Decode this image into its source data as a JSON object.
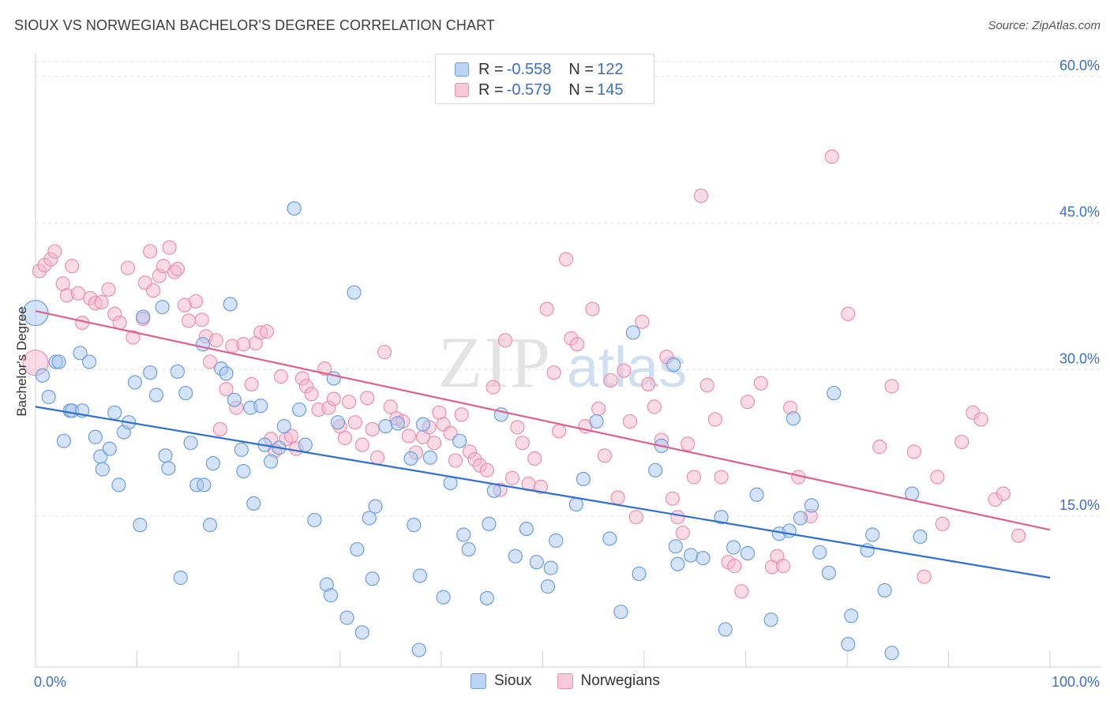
{
  "header": {
    "title": "SIOUX VS NORWEGIAN BACHELOR'S DEGREE CORRELATION CHART",
    "source": "Source: ZipAtlas.com"
  },
  "legend": {
    "rows": [
      {
        "r_label": "R = ",
        "r_value": "-0.558",
        "n_label": "N = ",
        "n_value": "122"
      },
      {
        "r_label": "R = ",
        "r_value": "-0.579",
        "n_label": "N = ",
        "n_value": "145"
      }
    ],
    "bottom": [
      "Sioux",
      "Norwegians"
    ]
  },
  "watermark": {
    "zip": "ZIP",
    "atlas": "atlas"
  },
  "colors": {
    "sioux_fill": "#a9c8ef",
    "sioux_stroke": "#6b9fe0",
    "sioux_line": "#2d6fd3",
    "norw_fill": "#f5b8cb",
    "norw_stroke": "#ec8fac",
    "norw_line": "#e0608c",
    "tick_text": "#3b6fc4",
    "grid": "#e0e0e0"
  },
  "chart_data": {
    "type": "scatter",
    "title": "SIOUX VS NORWEGIAN BACHELOR'S DEGREE CORRELATION CHART",
    "xlabel": "",
    "ylabel": "Bachelor's Degree",
    "xlim": [
      0,
      100
    ],
    "ylim": [
      0,
      62.5
    ],
    "x_tick_labels": [
      "0.0%",
      "100.0%"
    ],
    "y_ticks": [
      15,
      30,
      45,
      60
    ],
    "y_tick_labels": [
      "15.0%",
      "30.0%",
      "45.0%",
      "60.0%"
    ],
    "grid": true,
    "legend_position": "top-center",
    "series": [
      {
        "name": "Sioux",
        "r": -0.558,
        "n": 122,
        "trend": {
          "x": [
            0,
            100
          ],
          "y": [
            26.2,
            8.7
          ]
        },
        "points": [
          [
            0,
            35.8
          ],
          [
            0.7,
            29.4
          ],
          [
            1.3,
            27.2
          ],
          [
            2,
            30.8
          ],
          [
            2.3,
            30.8
          ],
          [
            2.8,
            22.7
          ],
          [
            3.4,
            25.8
          ],
          [
            3.6,
            25.8
          ],
          [
            4.4,
            31.7
          ],
          [
            4.6,
            25.8
          ],
          [
            5.3,
            30.8
          ],
          [
            5.9,
            23.1
          ],
          [
            6.4,
            21.1
          ],
          [
            6.6,
            19.8
          ],
          [
            7.3,
            21.9
          ],
          [
            7.8,
            25.6
          ],
          [
            8.2,
            18.2
          ],
          [
            8.7,
            23.6
          ],
          [
            9.2,
            24.6
          ],
          [
            9.8,
            28.7
          ],
          [
            10.3,
            14.1
          ],
          [
            10.6,
            35.4
          ],
          [
            11.3,
            29.7
          ],
          [
            11.9,
            27.4
          ],
          [
            12.5,
            36.4
          ],
          [
            12.8,
            21.2
          ],
          [
            13.1,
            19.9
          ],
          [
            14,
            29.8
          ],
          [
            14.3,
            8.7
          ],
          [
            14.8,
            27.6
          ],
          [
            15.3,
            22.5
          ],
          [
            15.9,
            18.2
          ],
          [
            16.5,
            32.6
          ],
          [
            16.6,
            18.2
          ],
          [
            17.2,
            14.1
          ],
          [
            17.5,
            20.4
          ],
          [
            18.3,
            30.1
          ],
          [
            18.8,
            29.6
          ],
          [
            19.2,
            36.7
          ],
          [
            19.6,
            26.9
          ],
          [
            20.3,
            21.8
          ],
          [
            20.5,
            19.6
          ],
          [
            21.2,
            26.1
          ],
          [
            21.5,
            16.3
          ],
          [
            22.2,
            26.3
          ],
          [
            22.6,
            22.3
          ],
          [
            23.2,
            20.6
          ],
          [
            24,
            22
          ],
          [
            24.5,
            24.2
          ],
          [
            25.5,
            46.5
          ],
          [
            26,
            25.9
          ],
          [
            26.6,
            22.3
          ],
          [
            27.5,
            14.6
          ],
          [
            28.7,
            8
          ],
          [
            29.1,
            6.9
          ],
          [
            29.4,
            29.1
          ],
          [
            29.8,
            24.6
          ],
          [
            30.7,
            4.6
          ],
          [
            31.4,
            37.9
          ],
          [
            31.7,
            11.6
          ],
          [
            32.2,
            3.1
          ],
          [
            32.9,
            14.8
          ],
          [
            33.2,
            8.6
          ],
          [
            33.5,
            16
          ],
          [
            34.5,
            24.2
          ],
          [
            35.7,
            24.5
          ],
          [
            37,
            20.9
          ],
          [
            37.8,
            1.3
          ],
          [
            37.3,
            14.1
          ],
          [
            37.9,
            8.9
          ],
          [
            38.2,
            24.4
          ],
          [
            38.9,
            21
          ],
          [
            40.2,
            6.7
          ],
          [
            40.9,
            18.4
          ],
          [
            41.8,
            22.7
          ],
          [
            42.2,
            13.1
          ],
          [
            42.7,
            11.6
          ],
          [
            44.5,
            6.6
          ],
          [
            44.7,
            14.2
          ],
          [
            45.2,
            17.6
          ],
          [
            45.9,
            25.4
          ],
          [
            47.3,
            10.9
          ],
          [
            48.4,
            13.7
          ],
          [
            49.4,
            10.3
          ],
          [
            50.5,
            7.8
          ],
          [
            50.8,
            9.7
          ],
          [
            51.3,
            12.5
          ],
          [
            53.3,
            16.2
          ],
          [
            54,
            18.8
          ],
          [
            55.3,
            24.7
          ],
          [
            56.6,
            12.7
          ],
          [
            57.7,
            5.2
          ],
          [
            58.9,
            33.8
          ],
          [
            59.5,
            9.1
          ],
          [
            61.1,
            19.7
          ],
          [
            61.7,
            22.2
          ],
          [
            62.9,
            30.5
          ],
          [
            63.1,
            11.9
          ],
          [
            63.3,
            10.1
          ],
          [
            64.6,
            11
          ],
          [
            65.8,
            10.7
          ],
          [
            67.6,
            14.9
          ],
          [
            68,
            3.4
          ],
          [
            68.8,
            11.8
          ],
          [
            70.2,
            11.2
          ],
          [
            71.1,
            17.2
          ],
          [
            72.5,
            4.4
          ],
          [
            73.3,
            13.2
          ],
          [
            74.3,
            13.5
          ],
          [
            74.7,
            25
          ],
          [
            75.4,
            14.8
          ],
          [
            76.5,
            16.1
          ],
          [
            77.3,
            11.3
          ],
          [
            78.2,
            9.2
          ],
          [
            78.7,
            27.6
          ],
          [
            80.1,
            1.9
          ],
          [
            80.4,
            4.8
          ],
          [
            82,
            11.5
          ],
          [
            82.5,
            13.1
          ],
          [
            83.7,
            7.4
          ],
          [
            84.4,
            1
          ],
          [
            86.4,
            17.3
          ],
          [
            87.2,
            12.9
          ]
        ]
      },
      {
        "name": "Norwegians",
        "r": -0.579,
        "n": 145,
        "trend": {
          "x": [
            0,
            100
          ],
          "y": [
            36,
            13.6
          ]
        },
        "points": [
          [
            0,
            30.7
          ],
          [
            0.4,
            40.1
          ],
          [
            0.9,
            40.7
          ],
          [
            1.5,
            41.3
          ],
          [
            1.9,
            42.1
          ],
          [
            2.7,
            38.8
          ],
          [
            3.1,
            37.6
          ],
          [
            3.6,
            40.6
          ],
          [
            4.2,
            37.8
          ],
          [
            4.6,
            34.8
          ],
          [
            5.4,
            37.3
          ],
          [
            5.9,
            36.8
          ],
          [
            6.5,
            36.9
          ],
          [
            7.2,
            38.2
          ],
          [
            7.8,
            35.7
          ],
          [
            8.3,
            34.8
          ],
          [
            9.1,
            40.4
          ],
          [
            9.6,
            33.3
          ],
          [
            10.6,
            35.2
          ],
          [
            10.8,
            38.9
          ],
          [
            11.3,
            42.1
          ],
          [
            11.6,
            38.1
          ],
          [
            12.2,
            39.6
          ],
          [
            12.6,
            40.6
          ],
          [
            13.2,
            42.5
          ],
          [
            13.7,
            40
          ],
          [
            14,
            40.3
          ],
          [
            14.7,
            36.6
          ],
          [
            15.1,
            35
          ],
          [
            15.8,
            37
          ],
          [
            16.4,
            35.1
          ],
          [
            16.8,
            33.4
          ],
          [
            17.2,
            30.8
          ],
          [
            17.8,
            33
          ],
          [
            18.2,
            23.9
          ],
          [
            18.8,
            28
          ],
          [
            19.4,
            32.4
          ],
          [
            19.8,
            26.1
          ],
          [
            20.5,
            32.6
          ],
          [
            21.3,
            28.5
          ],
          [
            21.7,
            32.7
          ],
          [
            22.2,
            33.8
          ],
          [
            22.8,
            33.9
          ],
          [
            23.2,
            22.9
          ],
          [
            23.6,
            21.7
          ],
          [
            24.2,
            29.3
          ],
          [
            24.7,
            22.9
          ],
          [
            25.2,
            23.2
          ],
          [
            25.7,
            21.9
          ],
          [
            26.3,
            29.1
          ],
          [
            26.7,
            28.3
          ],
          [
            27.2,
            27.5
          ],
          [
            27.9,
            25.9
          ],
          [
            28.5,
            30.1
          ],
          [
            28.9,
            26.1
          ],
          [
            29.4,
            27
          ],
          [
            30,
            24.2
          ],
          [
            30.5,
            23
          ],
          [
            30.9,
            26.7
          ],
          [
            31.5,
            24.6
          ],
          [
            32.2,
            22.3
          ],
          [
            32.7,
            27.1
          ],
          [
            33.2,
            23.9
          ],
          [
            33.7,
            21
          ],
          [
            34.4,
            31.8
          ],
          [
            35,
            26.2
          ],
          [
            35.6,
            25
          ],
          [
            36.2,
            24.7
          ],
          [
            36.8,
            23.2
          ],
          [
            37.5,
            21.5
          ],
          [
            38.2,
            23.1
          ],
          [
            38.8,
            24.1
          ],
          [
            39.3,
            22.5
          ],
          [
            39.8,
            25.6
          ],
          [
            40.2,
            24.4
          ],
          [
            40.9,
            23.5
          ],
          [
            41.4,
            20.7
          ],
          [
            42,
            25.4
          ],
          [
            42.8,
            21.6
          ],
          [
            43.3,
            20.8
          ],
          [
            43.8,
            20.2
          ],
          [
            44.5,
            19.7
          ],
          [
            45.1,
            28.2
          ],
          [
            45.8,
            17.7
          ],
          [
            46.3,
            33
          ],
          [
            47,
            18.9
          ],
          [
            47.5,
            24.1
          ],
          [
            48,
            22.5
          ],
          [
            48.6,
            18.3
          ],
          [
            49.2,
            20.9
          ],
          [
            49.8,
            18
          ],
          [
            50.4,
            36.2
          ],
          [
            51.1,
            29.7
          ],
          [
            51.6,
            23.7
          ],
          [
            52.3,
            41.3
          ],
          [
            52.8,
            33.2
          ],
          [
            53.4,
            32.6
          ],
          [
            54.2,
            24.2
          ],
          [
            54.9,
            36.2
          ],
          [
            55.5,
            26
          ],
          [
            56.1,
            21.2
          ],
          [
            56.7,
            28.9
          ],
          [
            57.4,
            16.9
          ],
          [
            58,
            29.9
          ],
          [
            58.6,
            24.7
          ],
          [
            59.2,
            14.9
          ],
          [
            59.8,
            34.9
          ],
          [
            60.4,
            28.5
          ],
          [
            61,
            26.2
          ],
          [
            61.7,
            22.8
          ],
          [
            62.2,
            31.3
          ],
          [
            62.8,
            16.8
          ],
          [
            63.3,
            14.9
          ],
          [
            63.8,
            13.3
          ],
          [
            64.3,
            22.4
          ],
          [
            64.9,
            19
          ],
          [
            65.6,
            47.8
          ],
          [
            66.2,
            28.4
          ],
          [
            67,
            24.9
          ],
          [
            67.6,
            19
          ],
          [
            68.3,
            10.3
          ],
          [
            68.9,
            9.9
          ],
          [
            69.6,
            7.3
          ],
          [
            70.2,
            26.7
          ],
          [
            71.5,
            28.6
          ],
          [
            72.6,
            9.8
          ],
          [
            73.1,
            10.9
          ],
          [
            73.7,
            9.9
          ],
          [
            74.4,
            26.1
          ],
          [
            75.2,
            19
          ],
          [
            76.4,
            15
          ],
          [
            78.5,
            51.8
          ],
          [
            80.1,
            35.7
          ],
          [
            83.2,
            22.1
          ],
          [
            84.4,
            28.3
          ],
          [
            86.6,
            21.6
          ],
          [
            87.6,
            8.8
          ],
          [
            88.9,
            19
          ],
          [
            89.4,
            14.2
          ],
          [
            91.3,
            22.6
          ],
          [
            92.4,
            25.6
          ],
          [
            93.2,
            24.9
          ],
          [
            94.6,
            16.7
          ],
          [
            95.4,
            17.3
          ],
          [
            96.9,
            13
          ]
        ]
      }
    ]
  }
}
